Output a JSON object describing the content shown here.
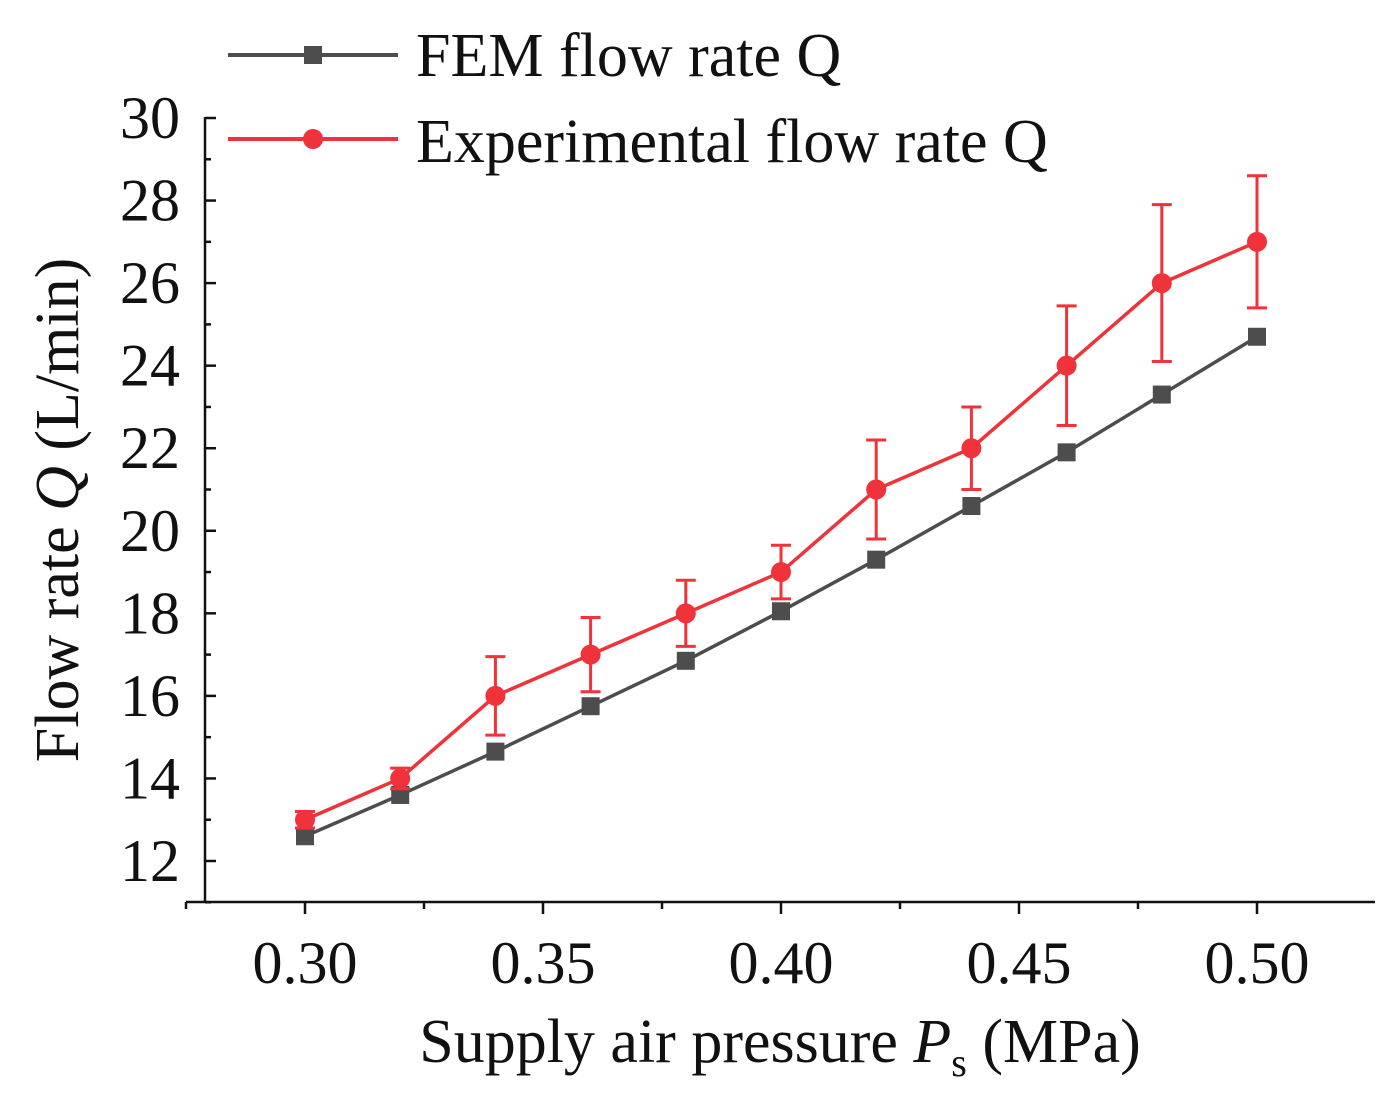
{
  "chart_data": {
    "type": "line",
    "x": [
      0.3,
      0.32,
      0.34,
      0.36,
      0.38,
      0.4,
      0.42,
      0.44,
      0.46,
      0.48,
      0.5
    ],
    "series": [
      {
        "name": "FEM flow rate Q",
        "color": "#4d4d4d",
        "marker": "square",
        "values": [
          12.6,
          13.6,
          14.65,
          15.75,
          16.85,
          18.05,
          19.3,
          20.6,
          21.9,
          23.3,
          24.7
        ]
      },
      {
        "name": "Experimental flow rate Q",
        "color": "#f0323a",
        "marker": "circle",
        "values": [
          13.0,
          14.0,
          16.0,
          17.0,
          18.0,
          19.0,
          21.0,
          22.0,
          24.0,
          26.0,
          27.0
        ],
        "error": [
          0.2,
          0.25,
          0.95,
          0.9,
          0.8,
          0.65,
          1.2,
          1.0,
          1.45,
          1.9,
          1.6
        ]
      }
    ],
    "xlim": [
      0.28,
      0.525
    ],
    "ylim": [
      11,
      30
    ],
    "xticks": [
      "0.30",
      "0.35",
      "0.40",
      "0.45",
      "0.50"
    ],
    "xtick_values": [
      0.3,
      0.35,
      0.4,
      0.45,
      0.5
    ],
    "yticks": [
      "12",
      "14",
      "16",
      "18",
      "20",
      "22",
      "24",
      "26",
      "28",
      "30"
    ],
    "ytick_values": [
      12,
      14,
      16,
      18,
      20,
      22,
      24,
      26,
      28,
      30
    ],
    "xlabel": {
      "main": "Supply air pressure ",
      "symbol": "P",
      "subscript": "s",
      "unit": " (MPa)"
    },
    "ylabel": {
      "main": "Flow rate ",
      "symbol": "Q",
      "unit": " (L/min)"
    },
    "legend_position": "top"
  }
}
